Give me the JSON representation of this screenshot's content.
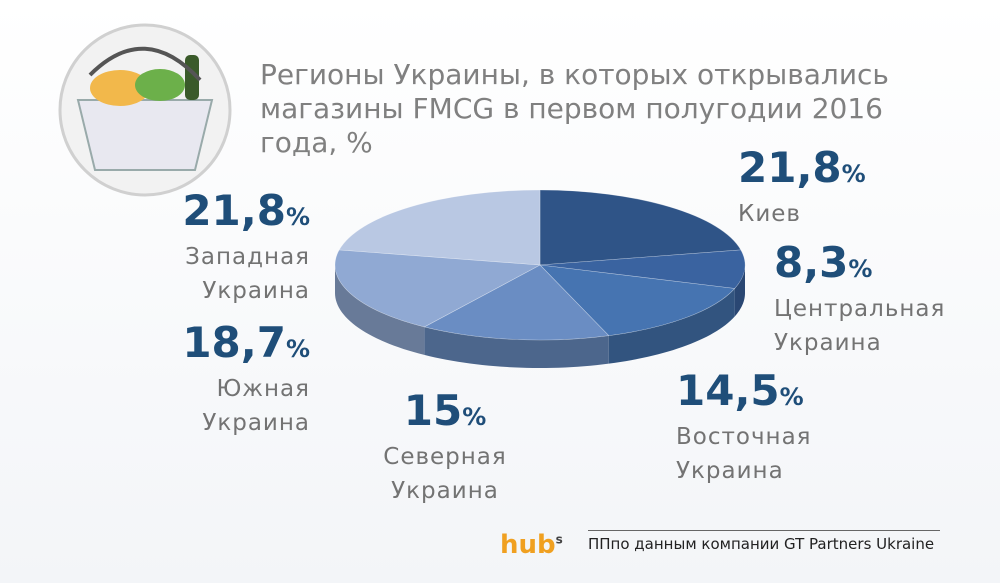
{
  "chart_data": {
    "type": "pie3d",
    "title": "Регионы Украины, в которых открывались магазины FMCG в первом полугодии 2016 года, %",
    "categories": [
      "Киев",
      "Центральная Украина",
      "Восточная Украина",
      "Северная Украина",
      "Южная Украина",
      "Западная Украина"
    ],
    "values": [
      21.8,
      8.3,
      14.5,
      15,
      18.7,
      21.8
    ],
    "value_labels": [
      "21,8",
      "8,3",
      "14,5",
      "15",
      "18,7",
      "21,8"
    ],
    "value_unit": "%",
    "colors": [
      "#2f5487",
      "#3a63a0",
      "#4674b1",
      "#6a8dc3",
      "#90a9d3",
      "#b9c8e3"
    ]
  },
  "footer": {
    "logo": "hub",
    "logo_sup": "s",
    "source": "ППпо данным компании GT Partners Ukraine"
  }
}
